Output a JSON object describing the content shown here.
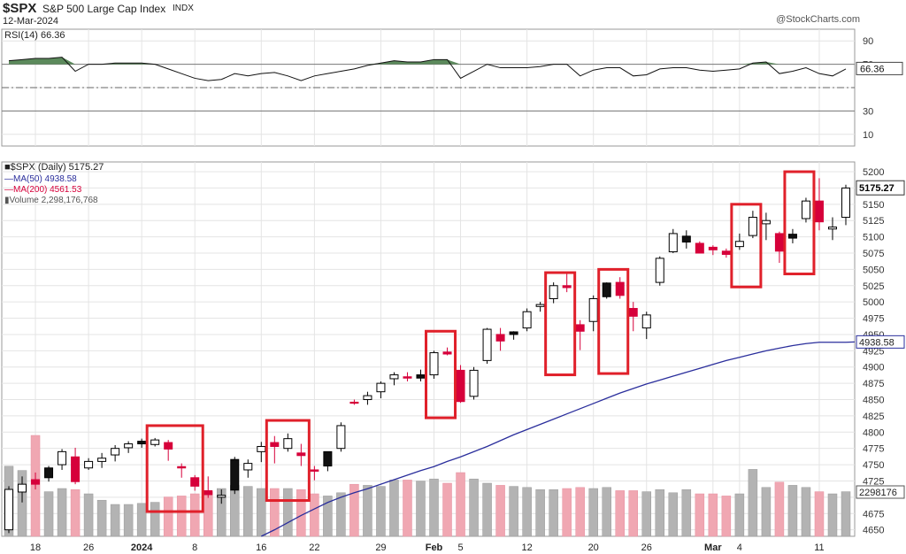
{
  "header": {
    "symbol": "$SPX",
    "name": "S&P 500 Large Cap Index",
    "exchange": "INDX",
    "date": "12-Mar-2024",
    "brand": "@StockCharts.com"
  },
  "rsi_panel": {
    "label": "RSI(14) 66.36",
    "value_tag": "66.36",
    "color": "#2e7d32"
  },
  "price_legend": {
    "price": "■$SPX (Daily) 5175.27",
    "ma50": "—MA(50) 4938.58",
    "ma200": "—MA(200) 4561.53",
    "volume": "▮Volume 2,298,176,768"
  },
  "colors": {
    "up": "#000000",
    "down": "#d6003a",
    "ma50": "#2a2e9c",
    "highlight_box": "#e0202a",
    "vol_up": "#b3b3b3",
    "vol_down": "#f0a7b2"
  },
  "chart_data": {
    "type": "candlestick",
    "x_ticks": [
      "18",
      "26",
      "2024",
      "8",
      "16",
      "22",
      "29",
      "Feb",
      "5",
      "12",
      "20",
      "26",
      "Mar",
      "4",
      "11"
    ],
    "x_tick_index": [
      2,
      6,
      10,
      14,
      19,
      23,
      28,
      32,
      34,
      39,
      44,
      48,
      53,
      55,
      61
    ],
    "y_ticks": [
      4650,
      4675,
      4700,
      4725,
      4750,
      4775,
      4800,
      4825,
      4850,
      4875,
      4900,
      4925,
      4950,
      4975,
      5000,
      5025,
      5050,
      5075,
      5100,
      5125,
      5150,
      5175,
      5200
    ],
    "y_tick_labels": [
      "4650",
      "4675",
      "",
      "4725",
      "4750",
      "4775",
      "4800",
      "4825",
      "4850",
      "4875",
      "4900",
      "4925",
      "4950",
      "4975",
      "5000",
      "5025",
      "5050",
      "5075",
      "5100",
      "5125",
      "5150",
      "",
      "5200"
    ],
    "ylim": [
      4640,
      5215
    ],
    "last_price_label": "5175.27",
    "ma50_label": "4938.58",
    "volume_label": "2298176",
    "rsi_ticks": [
      90,
      70,
      50,
      30,
      10
    ],
    "rsi_tick_labels": [
      "90",
      "70",
      "",
      "30",
      "10"
    ],
    "candles": [
      {
        "o": 4650,
        "h": 4717,
        "l": 4645,
        "c": 4712
      },
      {
        "o": 4708,
        "h": 4732,
        "l": 4692,
        "c": 4720
      },
      {
        "o": 4727,
        "h": 4738,
        "l": 4712,
        "c": 4720
      },
      {
        "o": 4730,
        "h": 4748,
        "l": 4724,
        "c": 4745
      },
      {
        "o": 4750,
        "h": 4774,
        "l": 4742,
        "c": 4770
      },
      {
        "o": 4762,
        "h": 4776,
        "l": 4720,
        "c": 4724
      },
      {
        "o": 4745,
        "h": 4760,
        "l": 4742,
        "c": 4755
      },
      {
        "o": 4755,
        "h": 4768,
        "l": 4745,
        "c": 4760
      },
      {
        "o": 4765,
        "h": 4780,
        "l": 4755,
        "c": 4775
      },
      {
        "o": 4776,
        "h": 4786,
        "l": 4768,
        "c": 4782
      },
      {
        "o": 4782,
        "h": 4790,
        "l": 4776,
        "c": 4786
      },
      {
        "o": 4781,
        "h": 4791,
        "l": 4778,
        "c": 4788
      },
      {
        "o": 4784,
        "h": 4788,
        "l": 4756,
        "c": 4774
      },
      {
        "o": 4747,
        "h": 4752,
        "l": 4730,
        "c": 4745
      },
      {
        "o": 4730,
        "h": 4734,
        "l": 4710,
        "c": 4717
      },
      {
        "o": 4710,
        "h": 4732,
        "l": 4699,
        "c": 4704
      },
      {
        "o": 4700,
        "h": 4712,
        "l": 4690,
        "c": 4703
      },
      {
        "o": 4711,
        "h": 4762,
        "l": 4705,
        "c": 4758
      },
      {
        "o": 4742,
        "h": 4758,
        "l": 4730,
        "c": 4752
      },
      {
        "o": 4770,
        "h": 4785,
        "l": 4754,
        "c": 4778
      },
      {
        "o": 4784,
        "h": 4794,
        "l": 4752,
        "c": 4778
      },
      {
        "o": 4775,
        "h": 4798,
        "l": 4770,
        "c": 4790
      },
      {
        "o": 4768,
        "h": 4782,
        "l": 4748,
        "c": 4764
      },
      {
        "o": 4742,
        "h": 4748,
        "l": 4726,
        "c": 4740
      },
      {
        "o": 4748,
        "h": 4770,
        "l": 4740,
        "c": 4770
      },
      {
        "o": 4775,
        "h": 4815,
        "l": 4770,
        "c": 4810
      },
      {
        "o": 4846,
        "h": 4850,
        "l": 4842,
        "c": 4845
      },
      {
        "o": 4850,
        "h": 4862,
        "l": 4842,
        "c": 4856
      },
      {
        "o": 4862,
        "h": 4878,
        "l": 4852,
        "c": 4875
      },
      {
        "o": 4882,
        "h": 4892,
        "l": 4872,
        "c": 4888
      },
      {
        "o": 4885,
        "h": 4892,
        "l": 4878,
        "c": 4883
      },
      {
        "o": 4883,
        "h": 4896,
        "l": 4878,
        "c": 4888
      },
      {
        "o": 4888,
        "h": 4925,
        "l": 4882,
        "c": 4922
      },
      {
        "o": 4923,
        "h": 4930,
        "l": 4918,
        "c": 4920
      },
      {
        "o": 4895,
        "h": 4903,
        "l": 4845,
        "c": 4847
      },
      {
        "o": 4855,
        "h": 4900,
        "l": 4850,
        "c": 4895
      },
      {
        "o": 4910,
        "h": 4960,
        "l": 4905,
        "c": 4958
      },
      {
        "o": 4950,
        "h": 4960,
        "l": 4925,
        "c": 4940
      },
      {
        "o": 4950,
        "h": 4955,
        "l": 4942,
        "c": 4954
      },
      {
        "o": 4960,
        "h": 4990,
        "l": 4955,
        "c": 4985
      },
      {
        "o": 4993,
        "h": 5000,
        "l": 4985,
        "c": 4996
      },
      {
        "o": 5005,
        "h": 5030,
        "l": 4998,
        "c": 5025
      },
      {
        "o": 5025,
        "h": 5045,
        "l": 5015,
        "c": 5022
      },
      {
        "o": 4965,
        "h": 4972,
        "l": 4926,
        "c": 4955
      },
      {
        "o": 4970,
        "h": 5010,
        "l": 4955,
        "c": 5005
      },
      {
        "o": 5008,
        "h": 5030,
        "l": 5005,
        "c": 5029
      },
      {
        "o": 5030,
        "h": 5038,
        "l": 5005,
        "c": 5010
      },
      {
        "o": 4990,
        "h": 5000,
        "l": 4955,
        "c": 4978
      },
      {
        "o": 4960,
        "h": 4985,
        "l": 4943,
        "c": 4980
      },
      {
        "o": 5030,
        "h": 5070,
        "l": 5025,
        "c": 5067
      },
      {
        "o": 5077,
        "h": 5112,
        "l": 5075,
        "c": 5105
      },
      {
        "o": 5092,
        "h": 5110,
        "l": 5082,
        "c": 5101
      },
      {
        "o": 5090,
        "h": 5093,
        "l": 5075,
        "c": 5075
      },
      {
        "o": 5084,
        "h": 5087,
        "l": 5072,
        "c": 5080
      },
      {
        "o": 5078,
        "h": 5082,
        "l": 5068,
        "c": 5073
      },
      {
        "o": 5085,
        "h": 5105,
        "l": 5080,
        "c": 5093
      },
      {
        "o": 5102,
        "h": 5140,
        "l": 5098,
        "c": 5130
      },
      {
        "o": 5120,
        "h": 5137,
        "l": 5095,
        "c": 5125
      },
      {
        "o": 5105,
        "h": 5108,
        "l": 5060,
        "c": 5078
      },
      {
        "o": 5098,
        "h": 5112,
        "l": 5090,
        "c": 5104
      },
      {
        "o": 5128,
        "h": 5160,
        "l": 5122,
        "c": 5155
      },
      {
        "o": 5155,
        "h": 5190,
        "l": 5110,
        "c": 5123
      },
      {
        "o": 5112,
        "h": 5130,
        "l": 5095,
        "c": 5115
      },
      {
        "o": 5130,
        "h": 5180,
        "l": 5118,
        "c": 5175
      }
    ],
    "volume_rel": [
      0.66,
      0.62,
      0.95,
      0.42,
      0.45,
      0.44,
      0.4,
      0.34,
      0.3,
      0.3,
      0.31,
      0.32,
      0.37,
      0.38,
      0.4,
      0.42,
      0.45,
      0.48,
      0.47,
      0.45,
      0.45,
      0.45,
      0.44,
      0.4,
      0.38,
      0.41,
      0.49,
      0.48,
      0.47,
      0.53,
      0.53,
      0.52,
      0.54,
      0.5,
      0.6,
      0.54,
      0.5,
      0.48,
      0.47,
      0.46,
      0.44,
      0.44,
      0.45,
      0.46,
      0.45,
      0.46,
      0.43,
      0.43,
      0.42,
      0.44,
      0.41,
      0.44,
      0.4,
      0.4,
      0.38,
      0.4,
      0.63,
      0.46,
      0.51,
      0.48,
      0.46,
      0.42,
      0.4,
      0.42
    ],
    "rsi": [
      73,
      74,
      75,
      75,
      76,
      64,
      70,
      70,
      71,
      71,
      71,
      70,
      66,
      62,
      58,
      56,
      57,
      62,
      60,
      62,
      63,
      60,
      56,
      60,
      62,
      64,
      66,
      69,
      71,
      73,
      72,
      72,
      74,
      74,
      58,
      64,
      70,
      67,
      67,
      67,
      68,
      70,
      70,
      60,
      65,
      67,
      67,
      60,
      61,
      66,
      67,
      67,
      65,
      64,
      65,
      66,
      71,
      72,
      62,
      64,
      67,
      62,
      60,
      66
    ],
    "ma50": [
      null,
      null,
      null,
      null,
      null,
      null,
      null,
      null,
      null,
      null,
      null,
      null,
      null,
      null,
      null,
      null,
      null,
      null,
      null,
      4640,
      4650,
      4661,
      4672,
      4682,
      4692,
      4700,
      4707,
      4713,
      4720,
      4727,
      4734,
      4741,
      4747,
      4755,
      4762,
      4770,
      4778,
      4787,
      4796,
      4804,
      4812,
      4820,
      4828,
      4836,
      4844,
      4852,
      4860,
      4867,
      4874,
      4880,
      4886,
      4892,
      4898,
      4904,
      4910,
      4915,
      4920,
      4925,
      4929,
      4933,
      4936,
      4938,
      4938,
      4938
    ],
    "highlights": [
      {
        "from": 11,
        "to": 14,
        "top": 4810,
        "bottom": 4678
      },
      {
        "from": 20,
        "to": 22,
        "top": 4818,
        "bottom": 4695
      },
      {
        "from": 32,
        "to": 33,
        "top": 4955,
        "bottom": 4822
      },
      {
        "from": 41,
        "to": 42,
        "top": 5045,
        "bottom": 4888
      },
      {
        "from": 45,
        "to": 46,
        "top": 5050,
        "bottom": 4890
      },
      {
        "from": 55,
        "to": 56,
        "top": 5150,
        "bottom": 5023
      },
      {
        "from": 59,
        "to": 60,
        "top": 5200,
        "bottom": 5043
      }
    ]
  }
}
